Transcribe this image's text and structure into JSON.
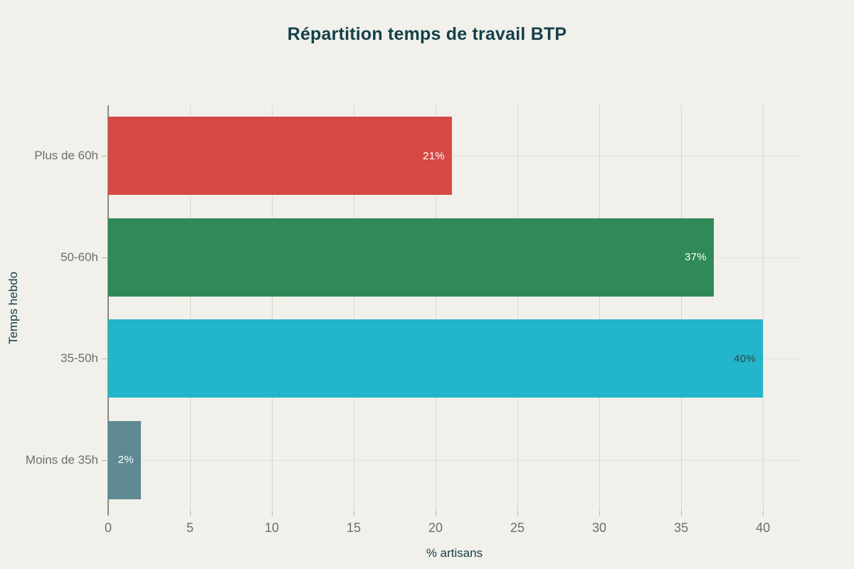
{
  "chart_data": {
    "type": "bar",
    "orientation": "horizontal",
    "title": "Répartition temps de travail BTP",
    "xlabel": "% artisans",
    "ylabel": "Temps hebdo",
    "categories_top_to_bottom": [
      "Plus de 60h",
      "50-60h",
      "35-50h",
      "Moins de 35h"
    ],
    "values": [
      21,
      37,
      40,
      2
    ],
    "value_labels": [
      "21%",
      "37%",
      "40%",
      "2%"
    ],
    "bar_colors": [
      "#d74945",
      "#2f8a57",
      "#23b5c9",
      "#5f8a94"
    ],
    "value_label_colors": [
      "#ffffff",
      "#ffffff",
      "#2b4650",
      "#ffffff"
    ],
    "xticks": [
      0,
      5,
      10,
      15,
      20,
      25,
      30,
      35,
      40
    ],
    "xlim": [
      0,
      42.3
    ],
    "grid": true,
    "legend": "none",
    "colors": {
      "background": "#f1f0ea",
      "title_text": "#14404a",
      "axis_title_text": "#14404a",
      "tick_label_text": "#6f6f69",
      "vertical_gridline": "#d8d8d1",
      "horizontal_gridline": "#e2e2db",
      "axis_line": "#8b8b85",
      "tick_mark": "#b3b3ac"
    }
  }
}
